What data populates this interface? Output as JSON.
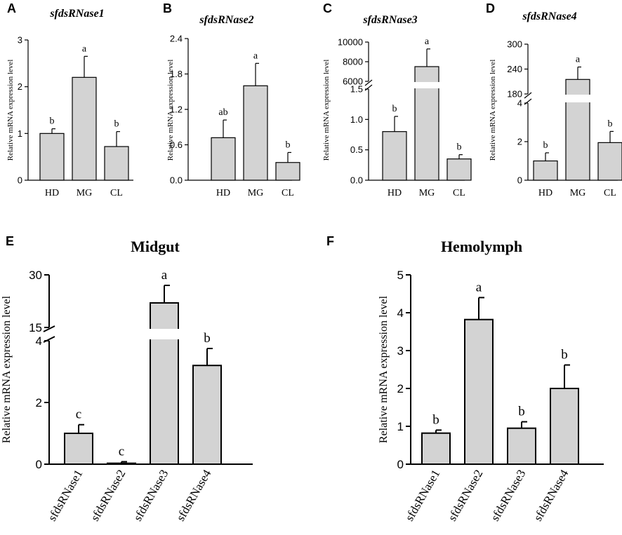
{
  "chart_data": [
    {
      "panel": "A",
      "type": "bar",
      "title": "sfdsRNase1",
      "ylabel": "Relative mRNA expression level",
      "xlabel": "",
      "categories": [
        "HD",
        "MG",
        "CL"
      ],
      "values": [
        1.0,
        2.2,
        0.72
      ],
      "errors": [
        0.1,
        0.45,
        0.32
      ],
      "significance": [
        "b",
        "a",
        "b"
      ],
      "ylim": [
        0,
        3
      ],
      "yticks": [
        0,
        1,
        2,
        3
      ],
      "ytick_labels": [
        "0",
        "1",
        "2",
        "3"
      ]
    },
    {
      "panel": "B",
      "type": "bar",
      "title": "sfdsRNase2",
      "ylabel": "Relative mRNA expression level",
      "xlabel": "",
      "categories": [
        "HD",
        "MG",
        "CL"
      ],
      "values": [
        0.72,
        1.6,
        0.3
      ],
      "errors": [
        0.3,
        0.38,
        0.17
      ],
      "significance": [
        "ab",
        "a",
        "b"
      ],
      "ylim": [
        0,
        2.4
      ],
      "yticks": [
        0,
        0.6,
        1.2,
        1.8,
        2.4
      ],
      "ytick_labels": [
        "0.0",
        "0.6",
        "1.2",
        "1.8",
        "2.4"
      ]
    },
    {
      "panel": "C",
      "type": "bar",
      "title": "sfdsRNase3",
      "ylabel": "Relative mRNA expression level",
      "xlabel": "",
      "categories": [
        "HD",
        "MG",
        "CL"
      ],
      "values": [
        0.8,
        7500,
        0.35
      ],
      "errors": [
        0.25,
        1800,
        0.07
      ],
      "significance": [
        "b",
        "a",
        "b"
      ],
      "axis_break": {
        "lower": [
          0,
          1.5
        ],
        "upper": [
          6000,
          10000
        ]
      },
      "yticks_lower": [
        0,
        0.5,
        1.0,
        1.5
      ],
      "ytick_labels_lower": [
        "0.0",
        "0.5",
        "1.0",
        "1.5"
      ],
      "yticks_upper": [
        6000,
        8000,
        10000
      ],
      "ytick_labels_upper": [
        "6000",
        "8000",
        "10000"
      ]
    },
    {
      "panel": "D",
      "type": "bar",
      "title": "sfdsRNase4",
      "ylabel": "Relative mRNA expression level",
      "xlabel": "",
      "categories": [
        "HD",
        "MG",
        "CL"
      ],
      "values": [
        1.0,
        215,
        1.95
      ],
      "errors": [
        0.42,
        30,
        0.58
      ],
      "significance": [
        "b",
        "a",
        "b"
      ],
      "axis_break": {
        "lower": [
          0,
          4
        ],
        "upper": [
          180,
          300
        ]
      },
      "yticks_lower": [
        0,
        2,
        4
      ],
      "ytick_labels_lower": [
        "0",
        "2",
        "4"
      ],
      "yticks_upper": [
        180,
        240,
        300
      ],
      "ytick_labels_upper": [
        "180",
        "240",
        "300"
      ]
    },
    {
      "panel": "E",
      "type": "bar",
      "title": "Midgut",
      "ylabel": "Relative mRNA expression level",
      "xlabel": "",
      "categories": [
        "sfdsRNase1",
        "sfdsRNase2",
        "sfdsRNase3",
        "sfdsRNase4"
      ],
      "values": [
        1.0,
        0.03,
        22,
        3.2
      ],
      "errors": [
        0.28,
        0.05,
        5,
        0.55
      ],
      "significance": [
        "c",
        "c",
        "a",
        "b"
      ],
      "axis_break": {
        "lower": [
          0,
          4
        ],
        "upper": [
          15,
          30
        ]
      },
      "yticks_lower": [
        0,
        2,
        4
      ],
      "ytick_labels_lower": [
        "0",
        "2",
        "4"
      ],
      "yticks_upper": [
        15,
        30
      ],
      "ytick_labels_upper": [
        "15",
        "30"
      ]
    },
    {
      "panel": "F",
      "type": "bar",
      "title": "Hemolymph",
      "ylabel": "Relative mRNA expression level",
      "xlabel": "",
      "categories": [
        "sfdsRNase1",
        "sfdsRNase2",
        "sfdsRNase3",
        "sfdsRNase4"
      ],
      "values": [
        0.82,
        3.82,
        0.95,
        2.0
      ],
      "errors": [
        0.08,
        0.58,
        0.17,
        0.62
      ],
      "significance": [
        "b",
        "a",
        "b",
        "b"
      ],
      "ylim": [
        0,
        5
      ],
      "yticks": [
        0,
        1,
        2,
        3,
        4,
        5
      ],
      "ytick_labels": [
        "0",
        "1",
        "2",
        "3",
        "4",
        "5"
      ]
    }
  ],
  "colors": {
    "bar_fill": "#d3d3d3",
    "stroke": "#000000"
  }
}
